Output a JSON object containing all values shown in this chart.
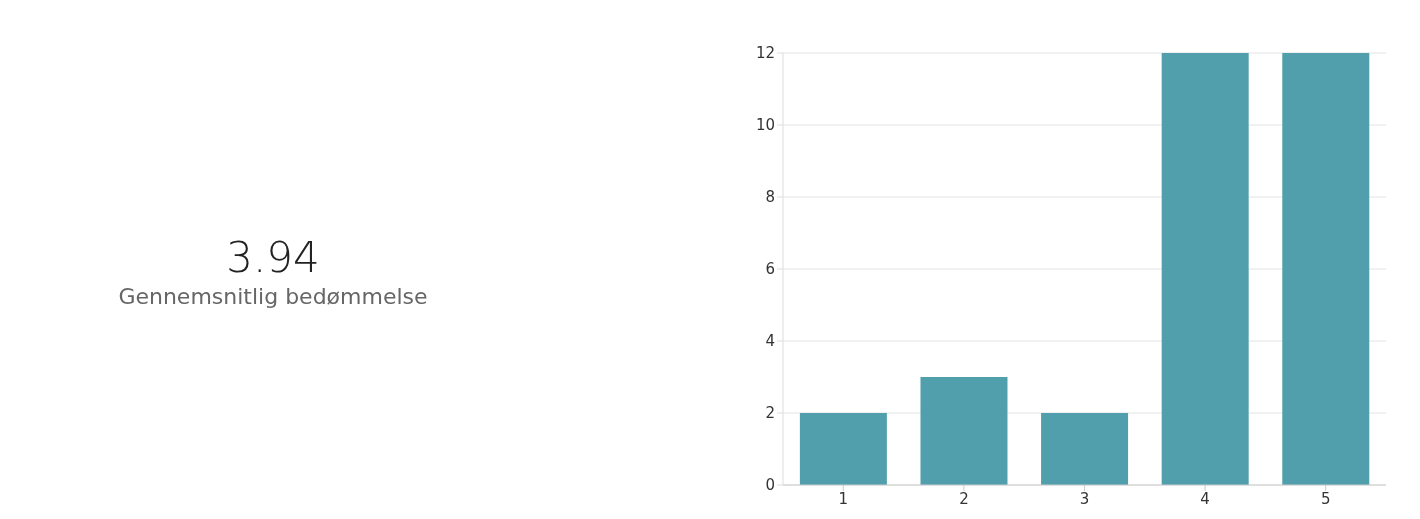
{
  "chart_data": [
    {
      "type": "other",
      "title": "3.94",
      "subtitle": "Gennemsnitlig bedømmelse"
    },
    {
      "type": "bar",
      "categories": [
        "1",
        "2",
        "3",
        "4",
        "5"
      ],
      "values": [
        2,
        3,
        2,
        12,
        12
      ],
      "color": "#519fac",
      "ylim": [
        0,
        12
      ],
      "yticks": [
        0,
        2,
        4,
        6,
        8,
        10,
        12
      ],
      "grid": "y"
    }
  ]
}
